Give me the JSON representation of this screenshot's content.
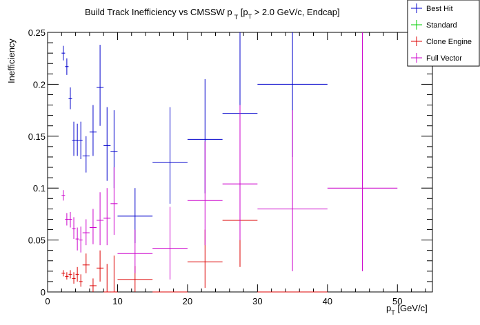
{
  "chart_data": {
    "type": "scatter",
    "title": {
      "main": "Build Track Inefficiency vs CMSSW p",
      "sub1": "T",
      "mid": " [p",
      "sub2": "T",
      "tail": " > 2.0 GeV/c, Endcap]"
    },
    "xlabel": {
      "main": "p",
      "sub": "T",
      "tail": " [GeV/c]"
    },
    "ylabel": "Inefficiency",
    "xlim": [
      0,
      55
    ],
    "ylim": [
      0,
      0.25
    ],
    "x_ticks": [
      0,
      10,
      20,
      30,
      40,
      50
    ],
    "x_tick_labels": [
      "0",
      "10",
      "20",
      "30",
      "40",
      "50"
    ],
    "y_ticks": [
      0,
      0.05,
      0.1,
      0.15,
      0.2,
      0.25
    ],
    "y_tick_labels": [
      "0",
      "0.05",
      "0.1",
      "0.15",
      "0.2",
      "0.25"
    ],
    "legend_position": "top-right",
    "series": [
      {
        "name": "Best Hit",
        "color": "#0000cc",
        "points": [
          {
            "x": 2.25,
            "xerr": 0.25,
            "y": 0.23,
            "ylo": 0.223,
            "yhi": 0.237
          },
          {
            "x": 2.75,
            "xerr": 0.25,
            "y": 0.217,
            "ylo": 0.209,
            "yhi": 0.225
          },
          {
            "x": 3.25,
            "xerr": 0.25,
            "y": 0.186,
            "ylo": 0.176,
            "yhi": 0.197
          },
          {
            "x": 3.75,
            "xerr": 0.25,
            "y": 0.146,
            "ylo": 0.131,
            "yhi": 0.164
          },
          {
            "x": 4.25,
            "xerr": 0.25,
            "y": 0.146,
            "ylo": 0.131,
            "yhi": 0.162
          },
          {
            "x": 4.75,
            "xerr": 0.25,
            "y": 0.146,
            "ylo": 0.128,
            "yhi": 0.164
          },
          {
            "x": 5.5,
            "xerr": 0.5,
            "y": 0.131,
            "ylo": 0.115,
            "yhi": 0.15
          },
          {
            "x": 6.5,
            "xerr": 0.5,
            "y": 0.154,
            "ylo": 0.131,
            "yhi": 0.18
          },
          {
            "x": 7.5,
            "xerr": 0.5,
            "y": 0.197,
            "ylo": 0.16,
            "yhi": 0.238
          },
          {
            "x": 8.5,
            "xerr": 0.5,
            "y": 0.141,
            "ylo": 0.107,
            "yhi": 0.178
          },
          {
            "x": 9.5,
            "xerr": 0.5,
            "y": 0.135,
            "ylo": 0.1,
            "yhi": 0.175
          },
          {
            "x": 12.5,
            "xerr": 2.5,
            "y": 0.073,
            "ylo": 0.047,
            "yhi": 0.1
          },
          {
            "x": 17.5,
            "xerr": 2.5,
            "y": 0.125,
            "ylo": 0.085,
            "yhi": 0.178
          },
          {
            "x": 22.5,
            "xerr": 2.5,
            "y": 0.147,
            "ylo": 0.095,
            "yhi": 0.205
          },
          {
            "x": 27.5,
            "xerr": 2.5,
            "y": 0.172,
            "ylo": 0.1,
            "yhi": 0.25
          },
          {
            "x": 35.0,
            "xerr": 5.0,
            "y": 0.2,
            "ylo": 0.13,
            "yhi": 0.25
          }
        ]
      },
      {
        "name": "Standard",
        "color": "#00cc00",
        "points": []
      },
      {
        "name": "Clone Engine",
        "color": "#dd0000",
        "points": [
          {
            "x": 2.25,
            "xerr": 0.25,
            "y": 0.018,
            "ylo": 0.015,
            "yhi": 0.021
          },
          {
            "x": 2.75,
            "xerr": 0.25,
            "y": 0.015,
            "ylo": 0.012,
            "yhi": 0.019
          },
          {
            "x": 3.25,
            "xerr": 0.25,
            "y": 0.017,
            "ylo": 0.013,
            "yhi": 0.021
          },
          {
            "x": 3.75,
            "xerr": 0.25,
            "y": 0.013,
            "ylo": 0.008,
            "yhi": 0.019
          },
          {
            "x": 4.25,
            "xerr": 0.25,
            "y": 0.017,
            "ylo": 0.01,
            "yhi": 0.024
          },
          {
            "x": 4.75,
            "xerr": 0.25,
            "y": 0.01,
            "ylo": 0.005,
            "yhi": 0.017
          },
          {
            "x": 5.5,
            "xerr": 0.5,
            "y": 0.026,
            "ylo": 0.018,
            "yhi": 0.037
          },
          {
            "x": 6.5,
            "xerr": 0.5,
            "y": 0.006,
            "ylo": 0.0,
            "yhi": 0.013
          },
          {
            "x": 7.5,
            "xerr": 0.5,
            "y": 0.023,
            "ylo": 0.01,
            "yhi": 0.04
          },
          {
            "x": 8.5,
            "xerr": 0.5,
            "y": 0.0,
            "ylo": 0.0,
            "yhi": 0.027
          },
          {
            "x": 9.5,
            "xerr": 0.5,
            "y": 0.0,
            "ylo": 0.0,
            "yhi": 0.035
          },
          {
            "x": 12.5,
            "xerr": 2.5,
            "y": 0.012,
            "ylo": 0.0,
            "yhi": 0.025
          },
          {
            "x": 17.5,
            "xerr": 2.5,
            "y": 0.0,
            "ylo": 0.0,
            "yhi": 0.0
          },
          {
            "x": 22.5,
            "xerr": 2.5,
            "y": 0.029,
            "ylo": 0.004,
            "yhi": 0.06
          },
          {
            "x": 27.5,
            "xerr": 2.5,
            "y": 0.069,
            "ylo": 0.024,
            "yhi": 0.135
          },
          {
            "x": 35.0,
            "xerr": 5.0,
            "y": 0.0,
            "ylo": 0.0,
            "yhi": 0.0
          }
        ]
      },
      {
        "name": "Full Vector",
        "color": "#cc00cc",
        "points": [
          {
            "x": 2.25,
            "xerr": 0.25,
            "y": 0.093,
            "ylo": 0.088,
            "yhi": 0.098
          },
          {
            "x": 2.75,
            "xerr": 0.25,
            "y": 0.07,
            "ylo": 0.064,
            "yhi": 0.076
          },
          {
            "x": 3.25,
            "xerr": 0.25,
            "y": 0.07,
            "ylo": 0.062,
            "yhi": 0.077
          },
          {
            "x": 3.75,
            "xerr": 0.25,
            "y": 0.061,
            "ylo": 0.051,
            "yhi": 0.072
          },
          {
            "x": 4.25,
            "xerr": 0.25,
            "y": 0.051,
            "ylo": 0.04,
            "yhi": 0.062
          },
          {
            "x": 4.75,
            "xerr": 0.25,
            "y": 0.05,
            "ylo": 0.038,
            "yhi": 0.063
          },
          {
            "x": 5.5,
            "xerr": 0.5,
            "y": 0.057,
            "ylo": 0.045,
            "yhi": 0.07
          },
          {
            "x": 6.5,
            "xerr": 0.5,
            "y": 0.062,
            "ylo": 0.046,
            "yhi": 0.08
          },
          {
            "x": 7.5,
            "xerr": 0.5,
            "y": 0.069,
            "ylo": 0.045,
            "yhi": 0.096
          },
          {
            "x": 8.5,
            "xerr": 0.5,
            "y": 0.071,
            "ylo": 0.045,
            "yhi": 0.1
          },
          {
            "x": 9.5,
            "xerr": 0.5,
            "y": 0.085,
            "ylo": 0.055,
            "yhi": 0.12
          },
          {
            "x": 12.5,
            "xerr": 2.5,
            "y": 0.037,
            "ylo": 0.018,
            "yhi": 0.06
          },
          {
            "x": 17.5,
            "xerr": 2.5,
            "y": 0.042,
            "ylo": 0.012,
            "yhi": 0.082
          },
          {
            "x": 22.5,
            "xerr": 2.5,
            "y": 0.088,
            "ylo": 0.045,
            "yhi": 0.145
          },
          {
            "x": 27.5,
            "xerr": 2.5,
            "y": 0.104,
            "ylo": 0.05,
            "yhi": 0.18
          },
          {
            "x": 35.0,
            "xerr": 5.0,
            "y": 0.08,
            "ylo": 0.02,
            "yhi": 0.175
          },
          {
            "x": 45.0,
            "xerr": 5.0,
            "y": 0.1,
            "ylo": 0.02,
            "yhi": 0.25
          }
        ]
      }
    ]
  }
}
